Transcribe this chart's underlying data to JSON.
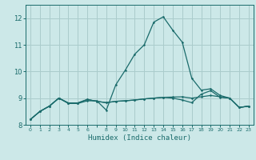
{
  "xlabel": "Humidex (Indice chaleur)",
  "background_color": "#cce8e8",
  "grid_color": "#aacccc",
  "line_color": "#1a6b6b",
  "xlim": [
    -0.5,
    23.5
  ],
  "ylim": [
    8.0,
    12.5
  ],
  "yticks": [
    8,
    9,
    10,
    11,
    12
  ],
  "xticks": [
    0,
    1,
    2,
    3,
    4,
    5,
    6,
    7,
    8,
    9,
    10,
    11,
    12,
    13,
    14,
    15,
    16,
    17,
    18,
    19,
    20,
    21,
    22,
    23
  ],
  "xtick_labels": [
    "0",
    "1",
    "2",
    "3",
    "4",
    "5",
    "6",
    "",
    "8",
    "9",
    "10",
    "11",
    "12",
    "13",
    "14",
    "15",
    "16",
    "17",
    "18",
    "19",
    "20",
    "21",
    "22",
    "23"
  ],
  "series": [
    {
      "x": [
        0,
        1,
        2,
        3,
        4,
        5,
        6,
        7,
        8,
        9,
        10,
        11,
        12,
        13,
        14,
        15,
        16,
        17,
        18,
        19,
        20,
        21,
        22,
        23
      ],
      "y": [
        8.2,
        8.5,
        8.7,
        9.0,
        8.8,
        8.8,
        8.9,
        8.9,
        8.55,
        9.5,
        10.05,
        10.65,
        11.0,
        11.85,
        12.05,
        11.55,
        11.1,
        9.75,
        9.3,
        9.35,
        9.1,
        9.0,
        8.65,
        8.7
      ]
    },
    {
      "x": [
        0,
        1,
        2,
        3,
        4,
        5,
        6,
        7,
        8,
        9,
        10,
        11,
        12,
        13,
        14,
        15,
        16,
        17,
        18,
        19,
        20,
        21,
        22,
        23
      ],
      "y": [
        8.2,
        8.5,
        8.7,
        9.0,
        8.82,
        8.82,
        8.95,
        8.88,
        8.83,
        8.88,
        8.9,
        8.93,
        8.97,
        9.0,
        9.03,
        9.04,
        9.05,
        9.0,
        9.05,
        9.1,
        9.05,
        9.0,
        8.65,
        8.7
      ]
    },
    {
      "x": [
        0,
        1,
        2,
        3,
        4,
        5,
        6,
        7,
        8,
        9,
        10,
        11,
        12,
        13,
        14,
        15,
        16,
        17,
        18,
        19,
        20,
        21,
        22,
        23
      ],
      "y": [
        8.2,
        8.5,
        8.7,
        9.0,
        8.82,
        8.82,
        8.95,
        8.88,
        8.83,
        8.88,
        8.9,
        8.93,
        8.97,
        9.0,
        9.03,
        9.0,
        8.93,
        8.83,
        9.15,
        9.28,
        9.03,
        9.0,
        8.65,
        8.7
      ]
    }
  ]
}
